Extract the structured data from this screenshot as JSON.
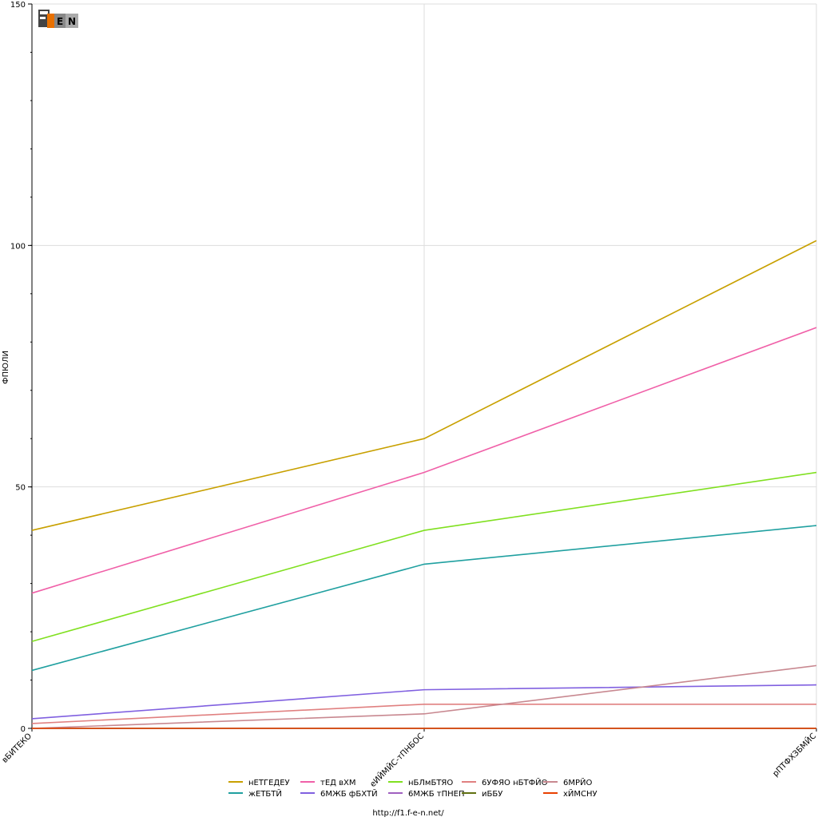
{
  "logo": {
    "text": "F1EN"
  },
  "footer": {
    "url": "http://f1.f-e-n.net/"
  },
  "chart_data": {
    "type": "line",
    "ylabel": "ФПЮЛИ",
    "xlabel": "",
    "categories": [
      "вБИТЕКО",
      "еИЙМЙС-тПНБОС",
      "рПТФХЗБМЙС"
    ],
    "ylim": [
      0,
      150
    ],
    "yticks": [
      0,
      50,
      100,
      150
    ],
    "grid": true,
    "legend_position": "bottom",
    "series": [
      {
        "name": "нЕТГЕДЕУ",
        "color": "#c8a000",
        "values": [
          41,
          60,
          101
        ]
      },
      {
        "name": "жЕТБТЙ",
        "color": "#20a0a0",
        "values": [
          12,
          34,
          42
        ]
      },
      {
        "name": "тЕД вХМ",
        "color": "#f060a8",
        "values": [
          28,
          53,
          83
        ]
      },
      {
        "name": "6МЖБ фБХТЙ",
        "color": "#8060e0",
        "values": [
          2,
          8,
          9
        ]
      },
      {
        "name": "нБЛмБТЯО",
        "color": "#80e020",
        "values": [
          18,
          41,
          53
        ]
      },
      {
        "name": "6МЖБ тПНЕП",
        "color": "#a060c0",
        "values": [
          0,
          0,
          0
        ]
      },
      {
        "name": "6УФЯО нБТФЙО",
        "color": "#e08080",
        "values": [
          1,
          5,
          5
        ]
      },
      {
        "name": "иББУ",
        "color": "#607010",
        "values": [
          0,
          0,
          0
        ]
      },
      {
        "name": "6МРЙО",
        "color": "#c88890",
        "values": [
          0,
          3,
          13
        ]
      },
      {
        "name": "хЙМСНУ",
        "color": "#e84000",
        "values": [
          0,
          0,
          0
        ]
      }
    ]
  }
}
